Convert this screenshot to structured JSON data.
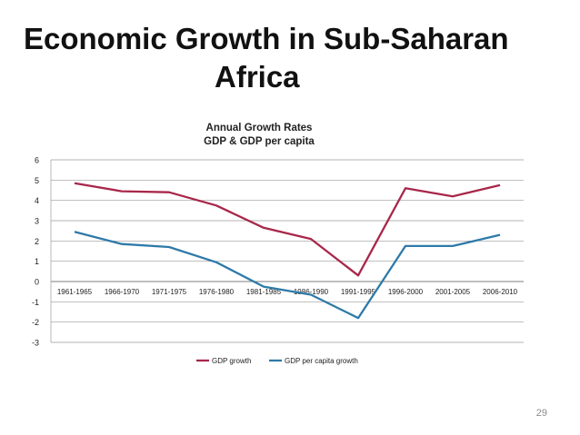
{
  "slide": {
    "title_line1": "Economic Growth in Sub-Saharan",
    "title_line2": "Africa",
    "page_number": "29"
  },
  "chart_data": {
    "type": "line",
    "title": "Annual Growth Rates",
    "subtitle": "GDP & GDP per capita",
    "categories": [
      "1961-1965",
      "1966-1970",
      "1971-1975",
      "1976-1980",
      "1981-1985",
      "1986-1990",
      "1991-1995",
      "1996-2000",
      "2001-2005",
      "2006-2010"
    ],
    "series": [
      {
        "name": "GDP growth",
        "color": "#a8274a",
        "values": [
          4.85,
          4.45,
          4.4,
          3.75,
          2.65,
          2.1,
          0.3,
          4.6,
          4.2,
          4.75
        ]
      },
      {
        "name": "GDP per capita growth",
        "color": "#2e7aa8",
        "values": [
          2.45,
          1.85,
          1.7,
          0.95,
          -0.25,
          -0.65,
          -1.8,
          1.75,
          1.75,
          2.3
        ]
      }
    ],
    "yticks": [
      "6",
      "5",
      "4",
      "3",
      "2",
      "1",
      "0",
      "-1",
      "-2",
      "-3"
    ],
    "ylim": [
      -3,
      6
    ],
    "grid": true,
    "legend_position": "bottom"
  }
}
